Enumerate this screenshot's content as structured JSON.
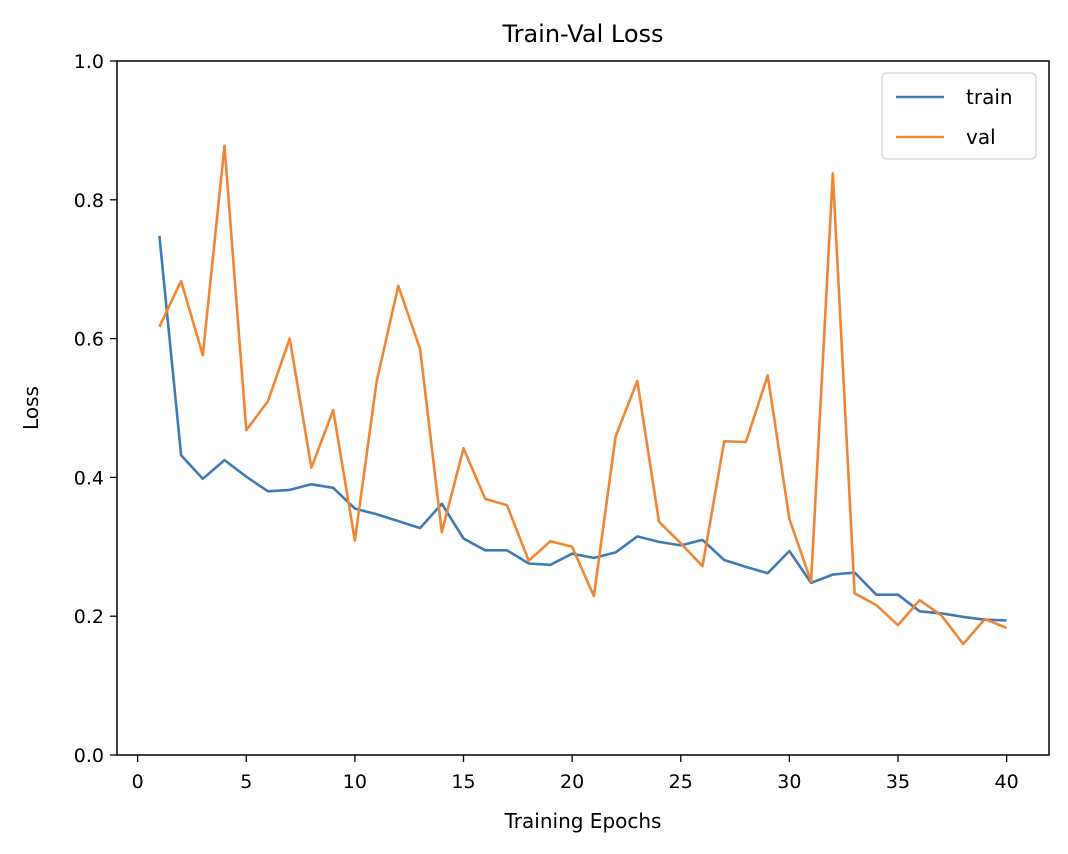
{
  "chart_data": {
    "type": "line",
    "title": "Train-Val Loss",
    "xlabel": "Training Epochs",
    "ylabel": "Loss",
    "xlim": [
      -0.95,
      41.95
    ],
    "ylim": [
      0.0,
      1.0
    ],
    "xticks": [
      0,
      5,
      10,
      15,
      20,
      25,
      30,
      35,
      40
    ],
    "xtick_labels": [
      "0",
      "5",
      "10",
      "15",
      "20",
      "25",
      "30",
      "35",
      "40"
    ],
    "yticks": [
      0.0,
      0.2,
      0.4,
      0.6,
      0.8,
      1.0
    ],
    "ytick_labels": [
      "0.0",
      "0.2",
      "0.4",
      "0.6",
      "0.8",
      "1.0"
    ],
    "grid": false,
    "legend_position": "top-right",
    "x": [
      1,
      2,
      3,
      4,
      5,
      6,
      7,
      8,
      9,
      10,
      11,
      12,
      13,
      14,
      15,
      16,
      17,
      18,
      19,
      20,
      21,
      22,
      23,
      24,
      25,
      26,
      27,
      28,
      29,
      30,
      31,
      32,
      33,
      34,
      35,
      36,
      37,
      38,
      39,
      40
    ],
    "series": [
      {
        "name": "train",
        "color": "#3f7ab3",
        "values": [
          0.748,
          0.432,
          0.398,
          0.425,
          0.401,
          0.38,
          0.382,
          0.39,
          0.385,
          0.355,
          0.347,
          0.337,
          0.327,
          0.362,
          0.312,
          0.295,
          0.295,
          0.276,
          0.274,
          0.29,
          0.284,
          0.292,
          0.315,
          0.307,
          0.302,
          0.31,
          0.281,
          0.271,
          0.262,
          0.294,
          0.248,
          0.26,
          0.263,
          0.231,
          0.231,
          0.207,
          0.204,
          0.199,
          0.195,
          0.194
        ]
      },
      {
        "name": "val",
        "color": "#ee8636",
        "values": [
          0.617,
          0.683,
          0.576,
          0.878,
          0.468,
          0.51,
          0.6,
          0.414,
          0.497,
          0.309,
          0.538,
          0.676,
          0.585,
          0.321,
          0.442,
          0.369,
          0.36,
          0.28,
          0.308,
          0.3,
          0.229,
          0.459,
          0.539,
          0.336,
          0.305,
          0.272,
          0.452,
          0.451,
          0.547,
          0.34,
          0.25,
          0.838,
          0.233,
          0.216,
          0.187,
          0.223,
          0.201,
          0.16,
          0.196,
          0.183
        ]
      }
    ]
  }
}
